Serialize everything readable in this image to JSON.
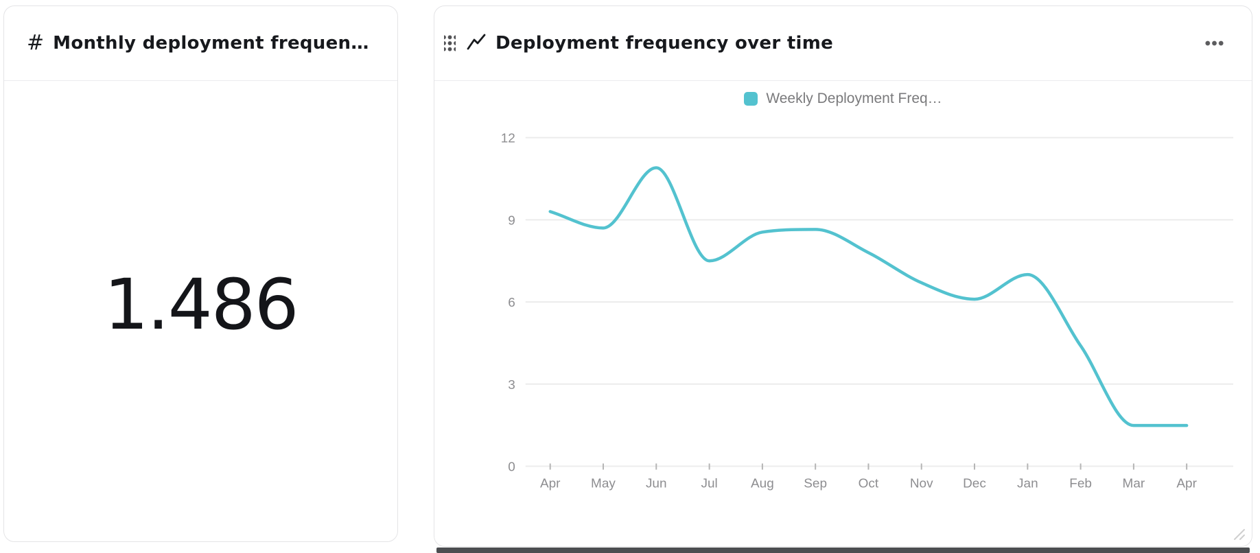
{
  "metric_card": {
    "icon": "#",
    "title": "Monthly deployment frequen…",
    "value": "1.486"
  },
  "chart_card": {
    "title": "Deployment frequency over time",
    "menu_icon": "ellipsis"
  },
  "chart_data": {
    "type": "line",
    "title": "Deployment frequency over time",
    "categories": [
      "Apr",
      "May",
      "Jun",
      "Jul",
      "Aug",
      "Sep",
      "Oct",
      "Nov",
      "Dec",
      "Jan",
      "Feb",
      "Mar",
      "Apr"
    ],
    "series": [
      {
        "name": "Weekly Deployment Freq…",
        "color": "#53c2cf",
        "values": [
          9.3,
          8.7,
          10.9,
          7.5,
          8.55,
          8.65,
          7.8,
          6.7,
          6.1,
          7.0,
          4.4,
          1.486,
          1.486
        ]
      }
    ],
    "ylim": [
      0,
      12
    ],
    "yticks": [
      0,
      3,
      6,
      9,
      12
    ],
    "xlabel": "",
    "ylabel": "",
    "grid": "horizontal",
    "legend_position": "top",
    "smoothing": "monotone",
    "colors": {
      "grid": "#ececec",
      "tick": "#b5b5b5",
      "axis_text": "#8d8d90"
    }
  }
}
